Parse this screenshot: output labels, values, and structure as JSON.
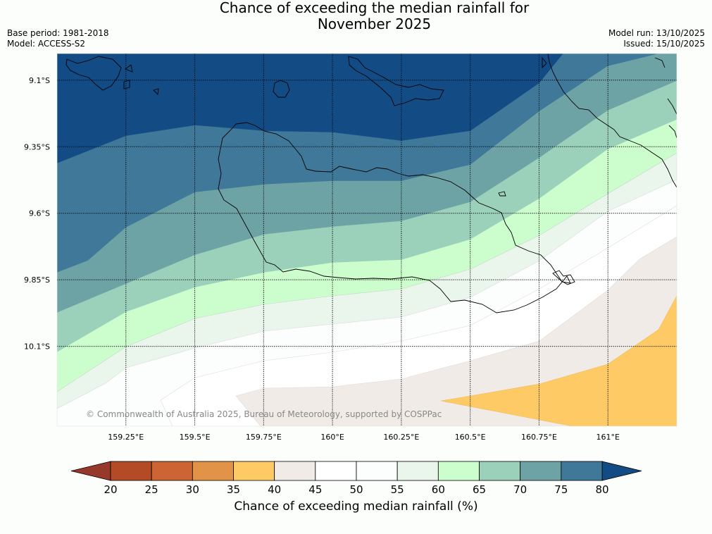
{
  "title_line1": "Chance of exceeding the median rainfall for",
  "title_line2": "November 2025",
  "meta_left": [
    "Base period: 1981-2018",
    "Model: ACCESS-S2"
  ],
  "meta_right": [
    "Model run: 13/10/2025",
    "Issued: 15/10/2025"
  ],
  "map": {
    "lon_range": [
      159.0,
      161.25
    ],
    "lat_range": [
      -10.4,
      -9.0
    ],
    "lat_ticks": [
      {
        "value": -9.1,
        "label": "9.1°S"
      },
      {
        "value": -9.35,
        "label": "9.35°S"
      },
      {
        "value": -9.6,
        "label": "9.6°S"
      },
      {
        "value": -9.85,
        "label": "9.85°S"
      },
      {
        "value": -10.1,
        "label": "10.1°S"
      }
    ],
    "lon_ticks": [
      {
        "value": 159.25,
        "label": "159.25°E"
      },
      {
        "value": 159.5,
        "label": "159.5°E"
      },
      {
        "value": 159.75,
        "label": "159.75°E"
      },
      {
        "value": 160.0,
        "label": "160°E"
      },
      {
        "value": 160.25,
        "label": "160.25°E"
      },
      {
        "value": 160.5,
        "label": "160.5°E"
      },
      {
        "value": 160.75,
        "label": "160.75°E"
      },
      {
        "value": 161.0,
        "label": "161°E"
      }
    ],
    "copyright": "© Commonwealth of Australia 2025, Bureau of Meteorology, supported by COSPPac"
  },
  "colorbar": {
    "title": "Chance of exceeding median rainfall (%)",
    "ticks": [
      "20",
      "25",
      "30",
      "35",
      "40",
      "45",
      "50",
      "55",
      "60",
      "65",
      "70",
      "75",
      "80"
    ],
    "colors": [
      "#b24b26",
      "#cd6433",
      "#e19448",
      "#fdca66",
      "#f0ebe6",
      "#ffffff",
      "#fbfefc",
      "#eaf5ec",
      "#ccfdcc",
      "#9bd0bb",
      "#6ea3a6",
      "#3f7899"
    ],
    "under_color": "#96392a",
    "over_color": "#134b85"
  }
}
